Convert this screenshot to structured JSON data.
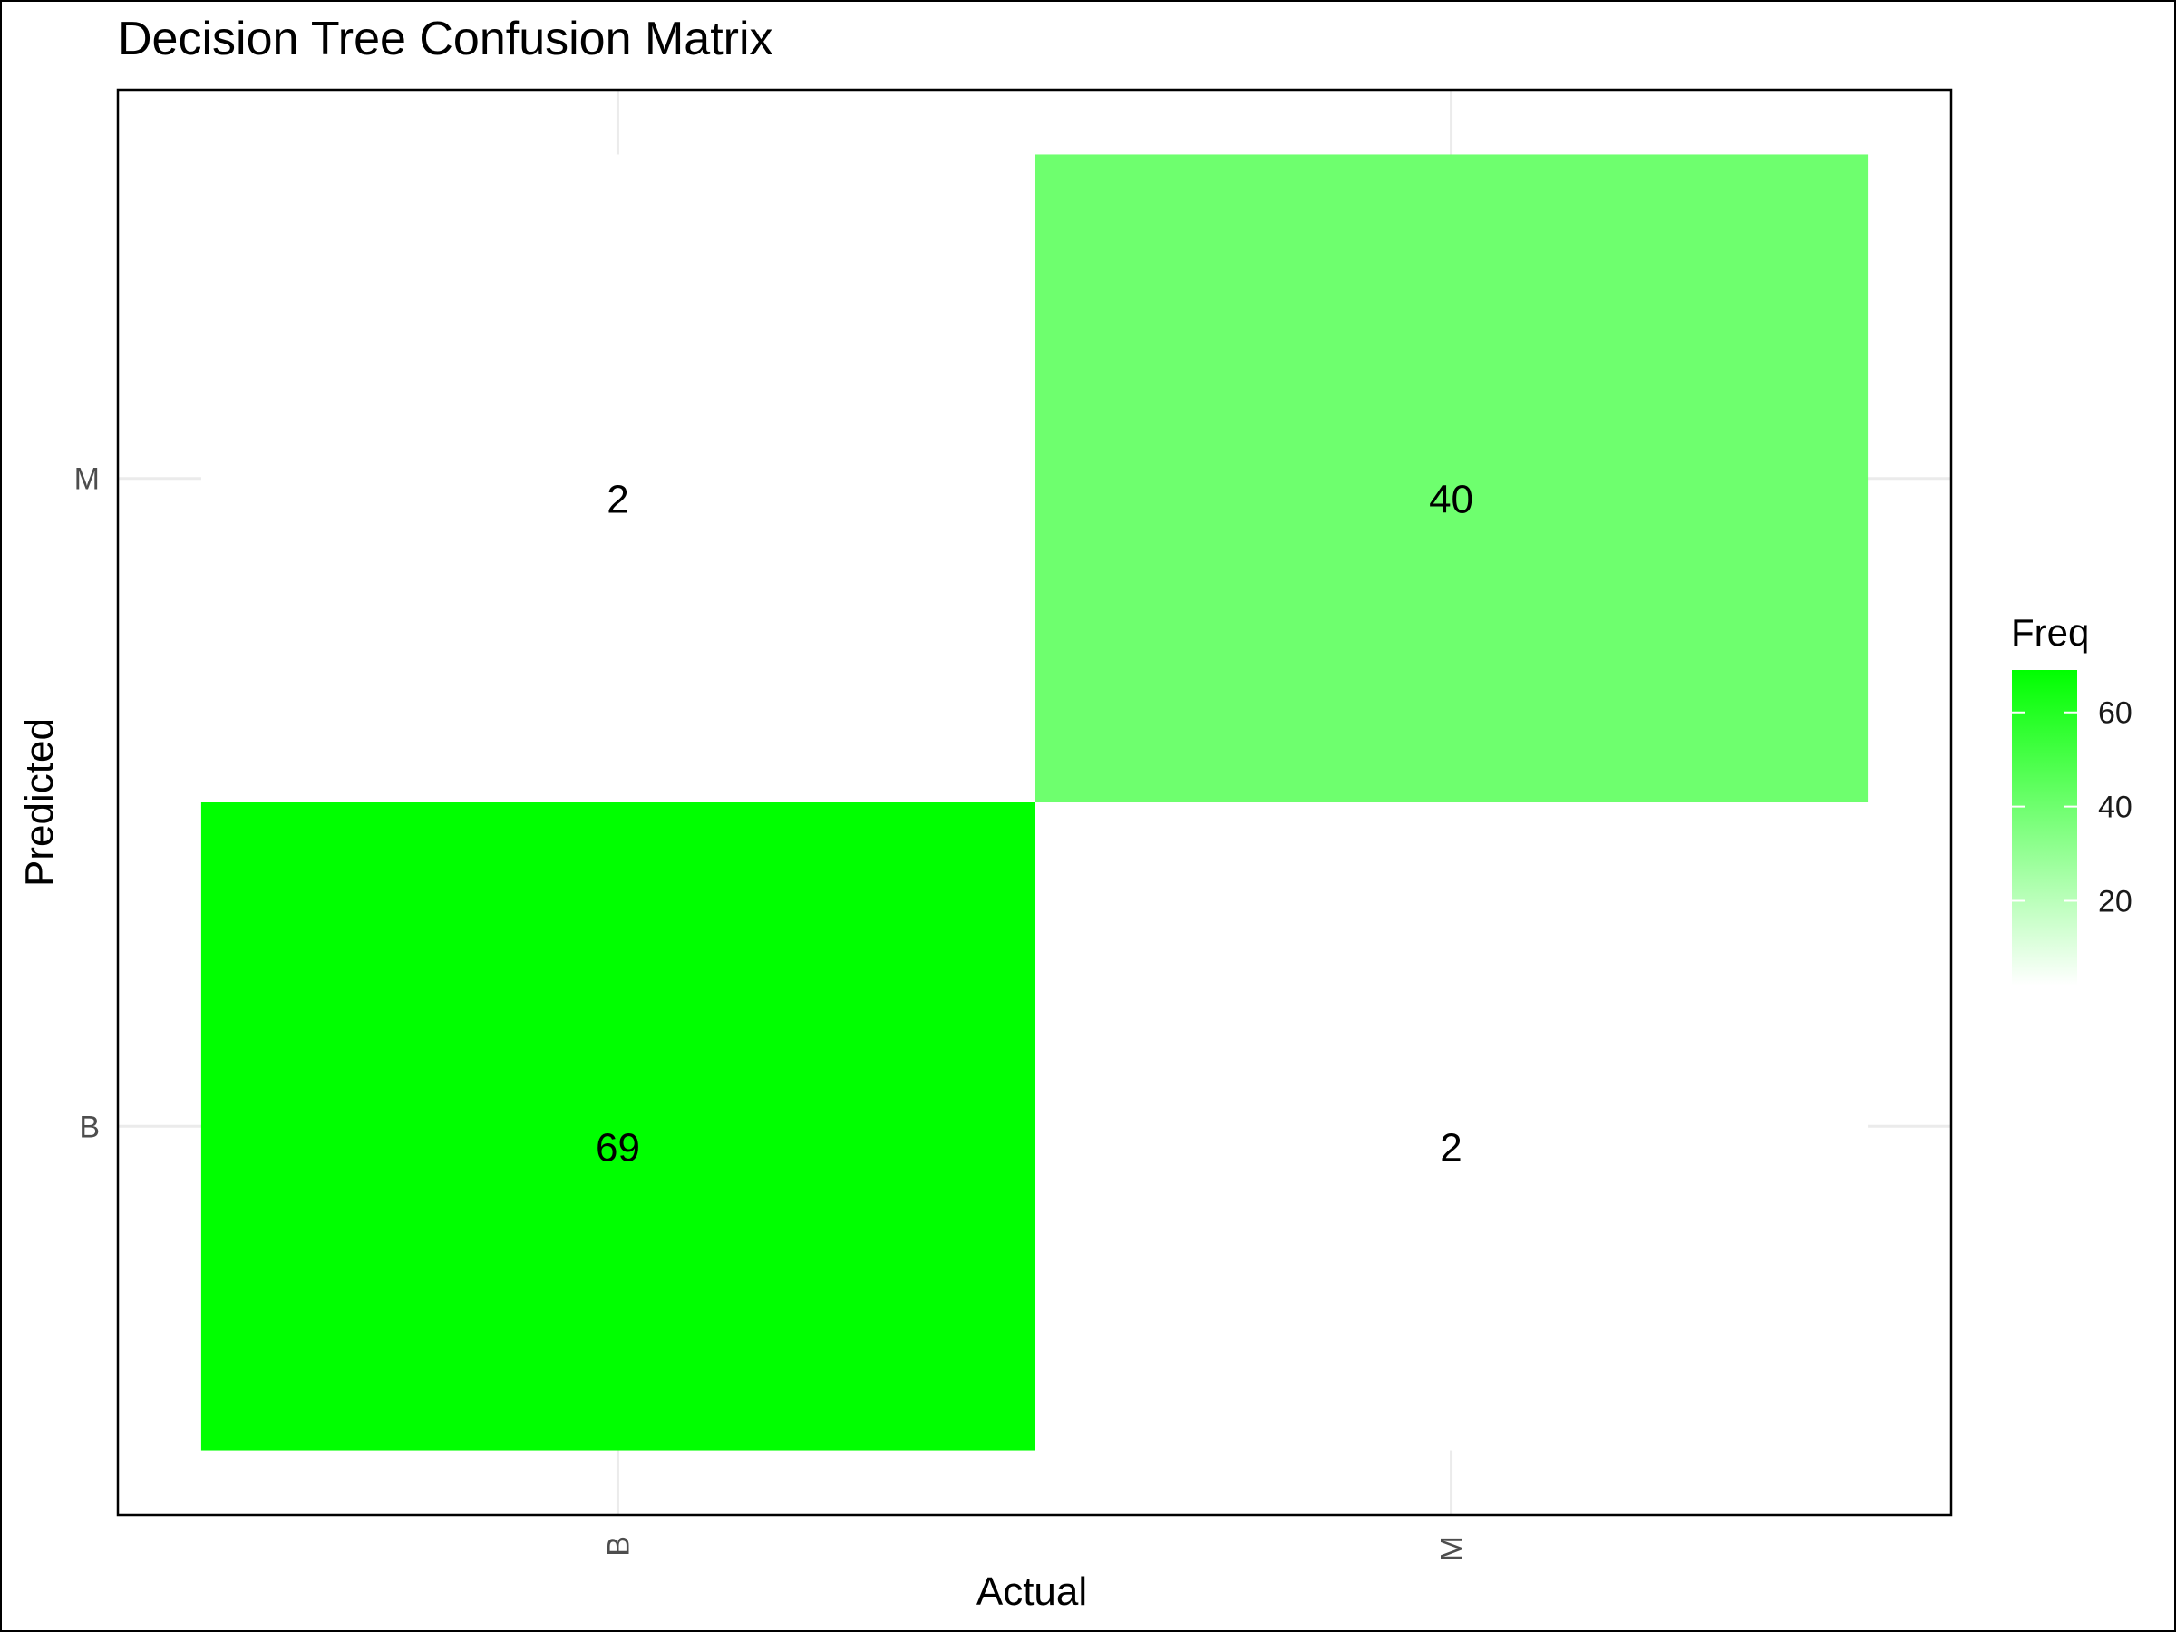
{
  "chart_data": {
    "type": "heatmap",
    "title": "Decision Tree Confusion Matrix",
    "xlabel": "Actual",
    "ylabel": "Predicted",
    "x_categories": [
      "B",
      "M"
    ],
    "y_categories": [
      "B",
      "M"
    ],
    "cells": [
      {
        "actual": "B",
        "predicted": "B",
        "value": 69
      },
      {
        "actual": "M",
        "predicted": "B",
        "value": 2
      },
      {
        "actual": "B",
        "predicted": "M",
        "value": 2
      },
      {
        "actual": "M",
        "predicted": "M",
        "value": 40
      }
    ],
    "legend": {
      "title": "Freq",
      "position": "right",
      "ticks": [
        20,
        40,
        60
      ],
      "range": [
        2,
        69
      ],
      "low_color": "#ffffff",
      "high_color": "#00ff00"
    },
    "grid": true
  }
}
